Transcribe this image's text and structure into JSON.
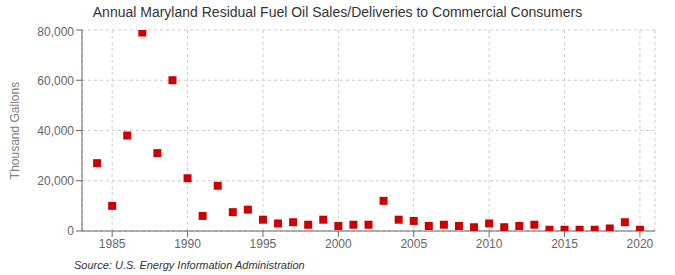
{
  "chart_data": {
    "type": "scatter",
    "title": "Annual Maryland Residual Fuel Oil Sales/Deliveries to Commercial Consumers",
    "ylabel": "Thousand Gallons",
    "annotations": [
      "Source: U.S. Energy Information Administration"
    ],
    "x": [
      1984,
      1985,
      1986,
      1987,
      1988,
      1989,
      1990,
      1991,
      1992,
      1993,
      1994,
      1995,
      1996,
      1997,
      1998,
      1999,
      2000,
      2001,
      2002,
      2003,
      2004,
      2005,
      2006,
      2007,
      2008,
      2009,
      2010,
      2011,
      2012,
      2013,
      2014,
      2015,
      2016,
      2017,
      2018,
      2019,
      2020
    ],
    "values": [
      27000,
      10000,
      38000,
      79000,
      31000,
      60000,
      21000,
      6000,
      18000,
      7500,
      8500,
      4500,
      3000,
      3500,
      2500,
      4500,
      2000,
      2500,
      2500,
      12000,
      4500,
      4000,
      2000,
      2500,
      2000,
      1500,
      3000,
      1500,
      2000,
      2500,
      500,
      500,
      500,
      500,
      1000,
      3500,
      500
    ],
    "color": "#cc0000",
    "marker": "square",
    "xlim": [
      1983,
      2021
    ],
    "xticks": [
      1985,
      1990,
      1995,
      2000,
      2005,
      2010,
      2015,
      2020
    ],
    "ylim": [
      0,
      80000
    ],
    "yticks": [
      0,
      {
        "value": 20000,
        "label": "20,000"
      },
      {
        "value": 40000,
        "label": "40,000"
      },
      {
        "value": 60000,
        "label": "60,000"
      },
      {
        "value": 80000,
        "label": "80,000"
      }
    ],
    "grid": true
  }
}
